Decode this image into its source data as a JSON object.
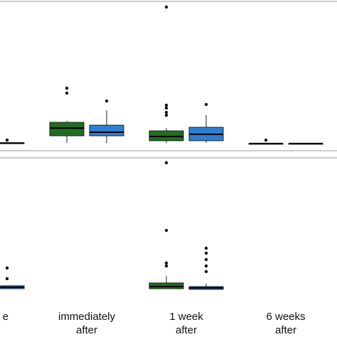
{
  "chart_data": [
    {
      "type": "box",
      "ylim": [
        0,
        100
      ],
      "series": [
        {
          "color": "#1f6e1f",
          "boxes": [
            null,
            {
              "min": 5.2,
              "q1": 10,
              "median": 15.2,
              "q3": 19,
              "max": 20,
              "outliers": [
                41.9,
                38.6
              ]
            },
            {
              "min": 5.2,
              "q1": 6.7,
              "median": 9.5,
              "q3": 13.3,
              "max": 15.2,
              "outliers": [
                96.2,
                30.5,
                28.6,
                25.7,
                23.8
              ]
            },
            {
              "min": 4.8,
              "q1": 4.8,
              "median": 4.8,
              "q3": 4.8,
              "max": 4.8,
              "outliers": [
                7.1
              ]
            }
          ]
        },
        {
          "color": "#2e7fd4",
          "boxes": [
            {
              "min": 5.2,
              "q1": 5.2,
              "median": 5.2,
              "q3": 5.2,
              "max": 5.2,
              "outliers": [
                7.1
              ]
            },
            {
              "min": 5.2,
              "q1": 10,
              "median": 12.4,
              "q3": 17.1,
              "max": 27.1,
              "outliers": [
                33.3
              ]
            },
            {
              "min": 5.2,
              "q1": 6.7,
              "median": 11,
              "q3": 15.7,
              "max": 23.8,
              "outliers": [
                31
              ]
            },
            {
              "min": 4.8,
              "q1": 4.8,
              "median": 4.8,
              "q3": 4.8,
              "max": 4.8,
              "outliers": []
            }
          ]
        }
      ]
    },
    {
      "type": "box",
      "ylim": [
        0,
        100
      ],
      "categories": [
        "e",
        "immediately\nafter",
        "1 week\nafter",
        "6 weeks\nafter"
      ],
      "series": [
        {
          "color": "#1f6e1f",
          "boxes": [
            null,
            null,
            {
              "min": 2.1,
              "q1": 2.1,
              "median": 3.7,
              "q3": 6.4,
              "max": 11.7,
              "outliers": [
                96.3,
                45.7,
                21.3,
                19.1
              ]
            },
            null
          ]
        },
        {
          "color": "#2e7fd4",
          "boxes": [
            {
              "min": 2.1,
              "q1": 2.1,
              "median": 3.2,
              "q3": 4.3,
              "max": 4.3,
              "outliers": [
                17.6,
                9.6
              ]
            },
            null,
            {
              "min": 1.6,
              "q1": 1.6,
              "median": 2.7,
              "q3": 3.7,
              "max": 5.9,
              "outliers": [
                32.4,
                28.7,
                23.9,
                19.1,
                14.9
              ]
            },
            null
          ]
        }
      ]
    }
  ]
}
